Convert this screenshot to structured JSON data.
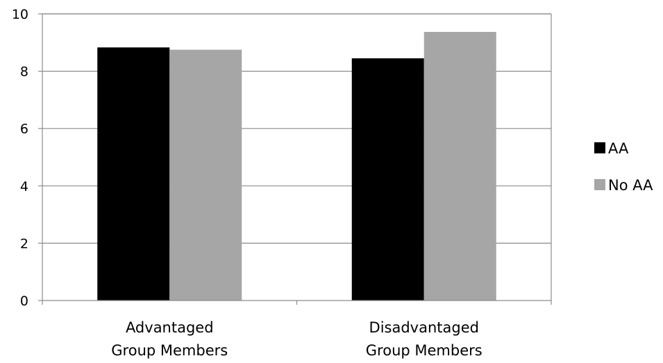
{
  "chart_data": {
    "type": "bar",
    "title": "",
    "xlabel": "",
    "ylabel": "",
    "categories": [
      [
        "Advantaged",
        "Group Members"
      ],
      [
        "Disadvantaged",
        "Group Members"
      ]
    ],
    "series": [
      {
        "name": "AA",
        "color": "#000000",
        "values": [
          8.83,
          8.45
        ]
      },
      {
        "name": "No AA",
        "color": "#a6a6a6",
        "values": [
          8.75,
          9.37
        ]
      }
    ],
    "ylim": [
      0,
      10
    ],
    "yticks": [
      0,
      2,
      4,
      6,
      8,
      10
    ],
    "grid": true,
    "gridline_color": "#8c8c8c",
    "legend_position": "right"
  }
}
